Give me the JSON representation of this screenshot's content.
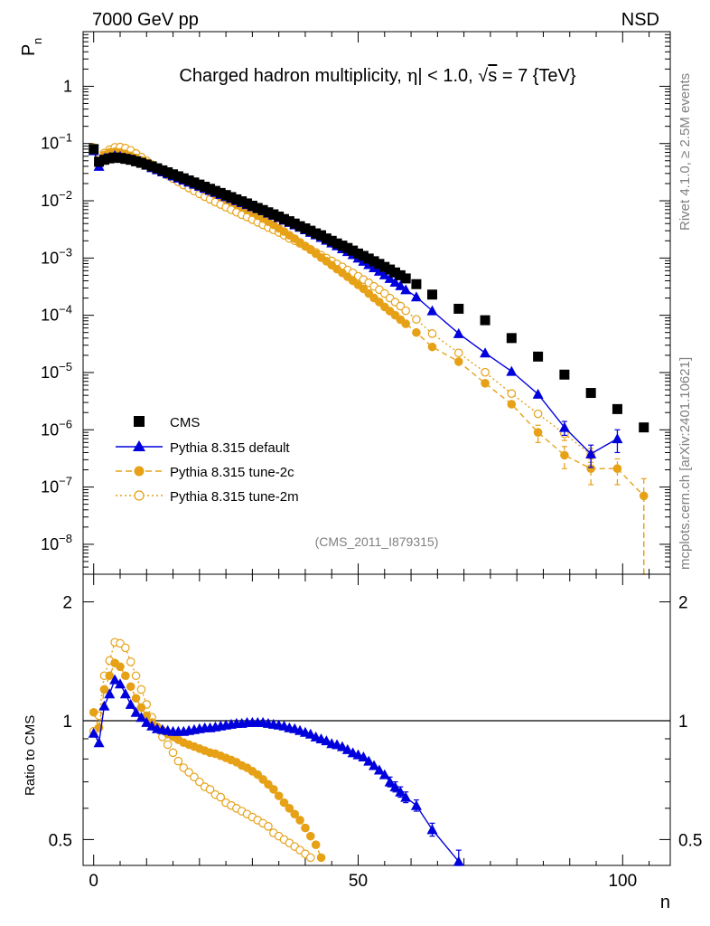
{
  "header": {
    "energy_label": "7000 GeV pp",
    "process_label": "NSD"
  },
  "side_text": {
    "rivet_info": "Rivet 4.1.0, ≥ 2.5M events",
    "source_info": "mcplots.cern.ch [arXiv:2401.10621]"
  },
  "colors": {
    "cms": "#000000",
    "default": "#0000dd",
    "tune2c": "#e6a117",
    "tune2m": "#e6a117"
  },
  "chart_data": [
    {
      "type": "scatter",
      "title": "Charged hadron multiplicity, |η| < 1.0, √s = 7 {TeV}",
      "title_parts": {
        "pre": "Charged hadron multiplicity, ",
        "eta": "η",
        "mid": "| < 1.0, ",
        "sqrt": "√",
        "s": "s",
        "post": " = 7 {TeV}"
      },
      "ylabel": "P",
      "ylabel_sub": "n",
      "yscale": "log",
      "ylim": [
        3e-09,
        9
      ],
      "xlim": [
        -2,
        109
      ],
      "y_ticks": [
        {
          "value": 1,
          "label": "1",
          "exp": ""
        },
        {
          "value": 0.1,
          "label": "10",
          "exp": "−1"
        },
        {
          "value": 0.01,
          "label": "10",
          "exp": "−2"
        },
        {
          "value": 0.001,
          "label": "10",
          "exp": "−3"
        },
        {
          "value": 0.0001,
          "label": "10",
          "exp": "−4"
        },
        {
          "value": 1e-05,
          "label": "10",
          "exp": "−5"
        },
        {
          "value": 1e-06,
          "label": "10",
          "exp": "−6"
        },
        {
          "value": 1e-07,
          "label": "10",
          "exp": "−7"
        },
        {
          "value": 1e-08,
          "label": "10",
          "exp": "−8"
        }
      ],
      "analysis_label": "(CMS_2011_I879315)",
      "legend_position": "bottom-left",
      "series": [
        {
          "key": "cms",
          "name": "CMS",
          "marker": "square",
          "x": [
            0,
            1,
            2,
            3,
            4,
            5,
            6,
            7,
            8,
            9,
            10,
            11,
            12,
            13,
            14,
            15,
            16,
            17,
            18,
            19,
            20,
            21,
            22,
            23,
            24,
            25,
            26,
            27,
            28,
            29,
            30,
            31,
            32,
            33,
            34,
            35,
            36,
            37,
            38,
            39,
            40,
            41,
            42,
            43,
            44,
            45,
            46,
            47,
            48,
            49,
            50,
            51,
            52,
            53,
            54,
            55,
            56,
            57,
            58,
            59,
            61,
            64,
            69,
            74,
            79,
            84,
            89,
            94,
            99,
            104
          ],
          "y": [
            0.08,
            0.048,
            0.052,
            0.055,
            0.057,
            0.056,
            0.054,
            0.052,
            0.049,
            0.046,
            0.043,
            0.04,
            0.037,
            0.034,
            0.0315,
            0.029,
            0.0268,
            0.0247,
            0.0227,
            0.0209,
            0.0192,
            0.0176,
            0.0162,
            0.0149,
            0.0137,
            0.0126,
            0.0116,
            0.0106,
            0.0098,
            0.009,
            0.0082,
            0.0075,
            0.0069,
            0.0063,
            0.0058,
            0.0053,
            0.0048,
            0.0044,
            0.004,
            0.0036,
            0.0033,
            0.003,
            0.0027,
            0.0025,
            0.0022,
            0.002,
            0.0018,
            0.00165,
            0.0015,
            0.00135,
            0.0012,
            0.00109,
            0.00098,
            0.00088,
            0.00079,
            0.0007,
            0.00063,
            0.00056,
            0.0005,
            0.00044,
            0.00035,
            0.00023,
            0.00013,
            8.2e-05,
            4e-05,
            1.9e-05,
            9.2e-06,
            4.4e-06,
            2.3e-06,
            1.1e-06
          ]
        },
        {
          "key": "default",
          "name": "Pythia 8.315 default",
          "marker": "triangle",
          "line": "solid",
          "x": [
            0,
            1,
            2,
            3,
            4,
            5,
            6,
            7,
            8,
            9,
            10,
            11,
            12,
            13,
            14,
            15,
            16,
            17,
            18,
            19,
            20,
            21,
            22,
            23,
            24,
            25,
            26,
            27,
            28,
            29,
            30,
            31,
            32,
            33,
            34,
            35,
            36,
            37,
            38,
            39,
            40,
            41,
            42,
            43,
            44,
            45,
            46,
            47,
            48,
            49,
            50,
            51,
            52,
            53,
            54,
            55,
            56,
            57,
            58,
            59,
            61,
            64,
            69,
            74,
            79,
            84,
            89,
            94,
            99
          ],
          "y": [
            0.075,
            0.04,
            0.055,
            0.058,
            0.062,
            0.06,
            0.056,
            0.053,
            0.05,
            0.046,
            0.042,
            0.038,
            0.035,
            0.032,
            0.0295,
            0.0272,
            0.025,
            0.023,
            0.0212,
            0.0195,
            0.018,
            0.0165,
            0.0152,
            0.014,
            0.0129,
            0.0119,
            0.011,
            0.0101,
            0.0093,
            0.0086,
            0.0079,
            0.0073,
            0.0067,
            0.0061,
            0.0056,
            0.0051,
            0.0046,
            0.0042,
            0.0038,
            0.00345,
            0.00312,
            0.00282,
            0.00255,
            0.0023,
            0.00205,
            0.00184,
            0.00164,
            0.00146,
            0.0013,
            0.00115,
            0.001,
            0.00088,
            0.00077,
            0.00068,
            0.00059,
            0.00051,
            0.00044,
            0.00038,
            0.00033,
            0.00028,
            0.00021,
            0.00012,
            4.8e-05,
            2.2e-05,
            1.05e-05,
            4.2e-06,
            1.1e-06,
            3.8e-07,
            7e-07
          ],
          "err": [
            [
              89,
              3e-07
            ],
            [
              94,
              1.6e-07
            ],
            [
              99,
              3e-07
            ]
          ]
        },
        {
          "key": "tune2c",
          "name": "Pythia 8.315 tune-2c",
          "marker": "circle",
          "line": "dashed",
          "x": [
            0,
            1,
            2,
            3,
            4,
            5,
            6,
            7,
            8,
            9,
            10,
            11,
            12,
            13,
            14,
            15,
            16,
            17,
            18,
            19,
            20,
            21,
            22,
            23,
            24,
            25,
            26,
            27,
            28,
            29,
            30,
            31,
            32,
            33,
            34,
            35,
            36,
            37,
            38,
            39,
            40,
            41,
            42,
            43,
            44,
            45,
            46,
            47,
            48,
            49,
            50,
            51,
            52,
            53,
            54,
            55,
            56,
            57,
            58,
            59,
            61,
            64,
            69,
            74,
            79,
            84,
            89,
            94,
            99,
            104
          ],
          "y": [
            0.085,
            0.045,
            0.063,
            0.07,
            0.072,
            0.07,
            0.066,
            0.061,
            0.056,
            0.051,
            0.046,
            0.042,
            0.038,
            0.034,
            0.0307,
            0.0278,
            0.0252,
            0.0229,
            0.0208,
            0.0189,
            0.0172,
            0.0156,
            0.0141,
            0.0128,
            0.0116,
            0.0105,
            0.0095,
            0.0086,
            0.0077,
            0.0069,
            0.0062,
            0.0055,
            0.0049,
            0.0043,
            0.0038,
            0.0033,
            0.0029,
            0.0025,
            0.00218,
            0.00188,
            0.00162,
            0.00139,
            0.00119,
            0.00102,
            0.00088,
            0.00075,
            0.00064,
            0.00055,
            0.00047,
            0.0004,
            0.00034,
            0.00029,
            0.00024,
            0.0002,
            0.00017,
            0.00014,
            0.000118,
            0.0001,
            8.4e-05,
            7.1e-05,
            5e-05,
            2.8e-05,
            1.55e-05,
            6.5e-06,
            2.8e-06,
            9e-07,
            3.6e-07,
            2.1e-07,
            2.1e-07,
            7e-08
          ],
          "err": [
            [
              84,
              3e-07
            ],
            [
              89,
              1.5e-07
            ],
            [
              94,
              1e-07
            ],
            [
              99,
              1e-07
            ],
            [
              104,
              7e-08
            ]
          ]
        },
        {
          "key": "tune2m",
          "name": "Pythia 8.315 tune-2m",
          "marker": "open-circle",
          "line": "dotted",
          "x": [
            0,
            1,
            2,
            3,
            4,
            5,
            6,
            7,
            8,
            9,
            10,
            11,
            12,
            13,
            14,
            15,
            16,
            17,
            18,
            19,
            20,
            21,
            22,
            23,
            24,
            25,
            26,
            27,
            28,
            29,
            30,
            31,
            32,
            33,
            34,
            35,
            36,
            37,
            38,
            39,
            40,
            41,
            42,
            43,
            44,
            45,
            46,
            47,
            48,
            49,
            50,
            51,
            52,
            53,
            54,
            55,
            56,
            57,
            58,
            59,
            61,
            64,
            69,
            74,
            79,
            84,
            89,
            94
          ],
          "y": [
            0.075,
            0.05,
            0.068,
            0.078,
            0.086,
            0.087,
            0.083,
            0.076,
            0.067,
            0.058,
            0.05,
            0.043,
            0.037,
            0.032,
            0.0278,
            0.0243,
            0.0213,
            0.0188,
            0.0167,
            0.0148,
            0.0132,
            0.0118,
            0.0106,
            0.0095,
            0.0086,
            0.0077,
            0.007,
            0.0063,
            0.0057,
            0.0052,
            0.0047,
            0.0042,
            0.0038,
            0.0034,
            0.0031,
            0.0028,
            0.0025,
            0.0022,
            0.002,
            0.0018,
            0.0016,
            0.00142,
            0.00126,
            0.00112,
            0.001,
            0.00089,
            0.00079,
            0.0007,
            0.00062,
            0.00055,
            0.00048,
            0.00042,
            0.00037,
            0.00032,
            0.00028,
            0.00024,
            0.0002,
            0.00017,
            0.000145,
            0.00012,
            8.5e-05,
            4.8e-05,
            2.2e-05,
            1.01e-05,
            4.3e-06,
            1.9e-06,
            8.5e-07,
            3.7e-07
          ],
          "err": [
            [
              89,
              2e-07
            ],
            [
              94,
              1e-07
            ]
          ]
        }
      ]
    },
    {
      "type": "scatter",
      "ylabel": "Ratio to CMS",
      "xlabel": "n",
      "yscale": "log",
      "ylim": [
        0.43,
        2.35
      ],
      "xlim": [
        -2,
        109
      ],
      "reference_line": 1,
      "y_ticks": [
        {
          "value": 0.5,
          "label": "0.5"
        },
        {
          "value": 1,
          "label": "1"
        },
        {
          "value": 2,
          "label": "2"
        }
      ],
      "x_ticks": [
        {
          "value": 0,
          "label": "0"
        },
        {
          "value": 50,
          "label": "50"
        },
        {
          "value": 100,
          "label": "100"
        }
      ],
      "series": [
        {
          "key": "default",
          "x": [
            0,
            1,
            2,
            3,
            4,
            5,
            6,
            7,
            8,
            9,
            10,
            11,
            12,
            13,
            14,
            15,
            16,
            17,
            18,
            19,
            20,
            21,
            22,
            23,
            24,
            25,
            26,
            27,
            28,
            29,
            30,
            31,
            32,
            33,
            34,
            35,
            36,
            37,
            38,
            39,
            40,
            41,
            42,
            43,
            44,
            45,
            46,
            47,
            48,
            49,
            50,
            51,
            52,
            53,
            54,
            55,
            56,
            57,
            58,
            59,
            61,
            64,
            69
          ],
          "y": [
            0.93,
            0.88,
            1.09,
            1.17,
            1.27,
            1.24,
            1.17,
            1.1,
            1.05,
            1.02,
            0.99,
            0.97,
            0.955,
            0.95,
            0.945,
            0.94,
            0.94,
            0.94,
            0.945,
            0.95,
            0.955,
            0.96,
            0.96,
            0.965,
            0.97,
            0.975,
            0.98,
            0.985,
            0.985,
            0.99,
            0.99,
            0.99,
            0.99,
            0.985,
            0.98,
            0.975,
            0.97,
            0.96,
            0.955,
            0.945,
            0.935,
            0.925,
            0.91,
            0.9,
            0.89,
            0.875,
            0.87,
            0.86,
            0.845,
            0.83,
            0.82,
            0.81,
            0.79,
            0.77,
            0.75,
            0.73,
            0.7,
            0.68,
            0.66,
            0.64,
            0.61,
            0.53,
            0.44
          ],
          "err": [
            [
              56,
              0.02
            ],
            [
              57,
              0.02
            ],
            [
              58,
              0.02
            ],
            [
              59,
              0.02
            ],
            [
              61,
              0.02
            ],
            [
              64,
              0.02
            ],
            [
              69,
              0.03
            ]
          ]
        },
        {
          "key": "tune2c",
          "x": [
            0,
            1,
            2,
            3,
            4,
            5,
            6,
            7,
            8,
            9,
            10,
            11,
            12,
            13,
            14,
            15,
            16,
            17,
            18,
            19,
            20,
            21,
            22,
            23,
            24,
            25,
            26,
            27,
            28,
            29,
            30,
            31,
            32,
            33,
            34,
            35,
            36,
            37,
            38,
            39,
            40,
            41,
            42,
            43
          ],
          "y": [
            1.05,
            0.96,
            1.2,
            1.3,
            1.4,
            1.37,
            1.3,
            1.22,
            1.14,
            1.08,
            1.03,
            0.99,
            0.965,
            0.945,
            0.925,
            0.91,
            0.895,
            0.88,
            0.87,
            0.86,
            0.85,
            0.84,
            0.83,
            0.825,
            0.815,
            0.805,
            0.795,
            0.785,
            0.77,
            0.76,
            0.745,
            0.73,
            0.71,
            0.69,
            0.67,
            0.645,
            0.62,
            0.6,
            0.58,
            0.56,
            0.535,
            0.51,
            0.485,
            0.45
          ]
        },
        {
          "key": "tune2m",
          "x": [
            0,
            1,
            2,
            3,
            4,
            5,
            6,
            7,
            8,
            9,
            10,
            11,
            12,
            13,
            14,
            15,
            16,
            17,
            18,
            19,
            20,
            21,
            22,
            23,
            24,
            25,
            26,
            27,
            28,
            29,
            30,
            31,
            32,
            33,
            34,
            35,
            36,
            37,
            38,
            39,
            40,
            41
          ],
          "y": [
            0.94,
            1.03,
            1.3,
            1.42,
            1.58,
            1.57,
            1.53,
            1.41,
            1.3,
            1.2,
            1.1,
            1.02,
            0.96,
            0.91,
            0.87,
            0.83,
            0.79,
            0.76,
            0.74,
            0.72,
            0.7,
            0.68,
            0.67,
            0.65,
            0.64,
            0.62,
            0.61,
            0.6,
            0.59,
            0.58,
            0.57,
            0.56,
            0.55,
            0.54,
            0.52,
            0.51,
            0.5,
            0.49,
            0.48,
            0.47,
            0.46,
            0.45
          ]
        }
      ]
    }
  ]
}
